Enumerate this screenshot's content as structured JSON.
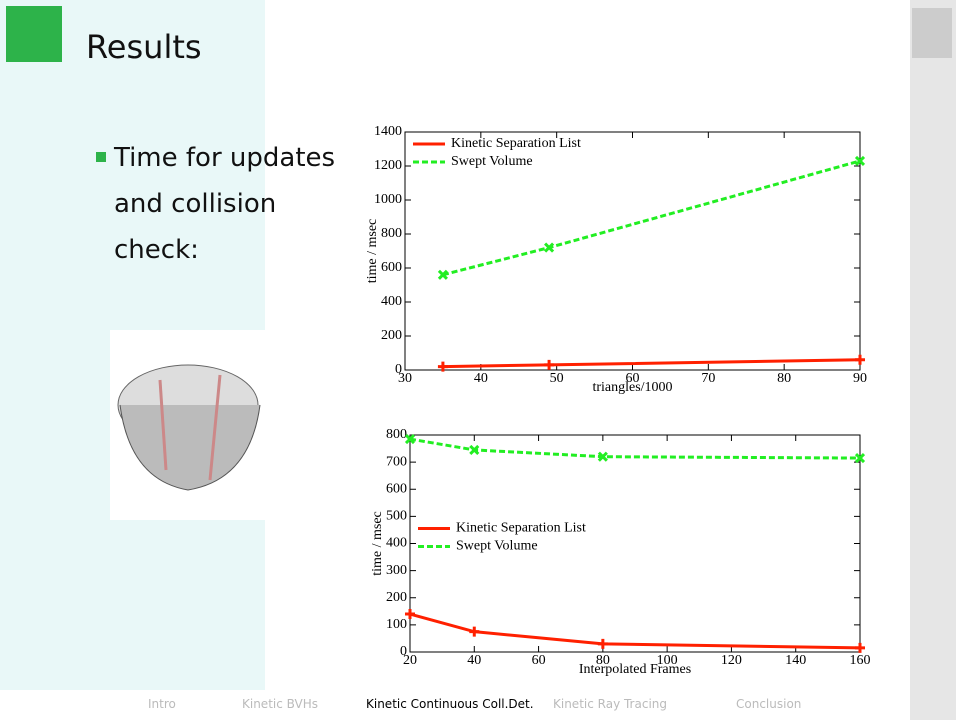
{
  "header": {
    "title": "Results"
  },
  "bullet": "Time for updates and collision check:",
  "nav": [
    "Intro",
    "Kinetic BVHs",
    "Kinetic Continuous Coll.Det.",
    "Kinetic Ray Tracing",
    "Conclusion"
  ],
  "nav_active": 2,
  "chart_data": [
    {
      "type": "line",
      "x_label": "triangles/1000",
      "y_label": "time / msec",
      "xlim": [
        30,
        90
      ],
      "xticks": [
        30,
        40,
        50,
        60,
        70,
        80,
        90
      ],
      "ylim": [
        0,
        1400
      ],
      "yticks": [
        0,
        200,
        400,
        600,
        800,
        1000,
        1200,
        1400
      ],
      "legend": "upper left",
      "series": [
        {
          "name": "Kinetic Separation List",
          "color": "#ff2000",
          "style": "solid",
          "marker": "plus",
          "x": [
            35,
            49,
            90
          ],
          "values": [
            20,
            30,
            60
          ]
        },
        {
          "name": "Swept Volume",
          "color": "#22ee22",
          "style": "dashed",
          "marker": "cross",
          "x": [
            35,
            49,
            90
          ],
          "values": [
            560,
            720,
            1230
          ]
        }
      ]
    },
    {
      "type": "line",
      "x_label": "Interpolated Frames",
      "y_label": "time / msec",
      "xlim": [
        20,
        160
      ],
      "xticks": [
        20,
        40,
        60,
        80,
        100,
        120,
        140,
        160
      ],
      "ylim": [
        0,
        800
      ],
      "yticks": [
        0,
        100,
        200,
        300,
        400,
        500,
        600,
        700,
        800
      ],
      "legend": "center left",
      "series": [
        {
          "name": "Kinetic Separation List",
          "color": "#ff2000",
          "style": "solid",
          "marker": "plus",
          "x": [
            20,
            40,
            80,
            160
          ],
          "values": [
            140,
            75,
            30,
            15
          ]
        },
        {
          "name": "Swept Volume",
          "color": "#22ee22",
          "style": "dashed",
          "marker": "cross",
          "x": [
            20,
            40,
            80,
            160
          ],
          "values": [
            785,
            745,
            720,
            715
          ]
        }
      ]
    }
  ]
}
